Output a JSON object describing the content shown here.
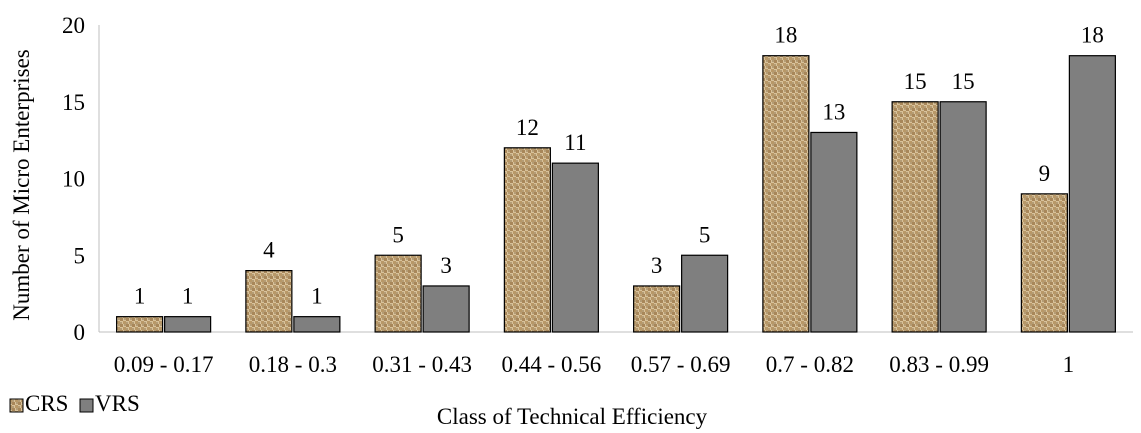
{
  "chart_data": {
    "type": "bar",
    "categories": [
      "0.09 - 0.17",
      "0.18 - 0.3",
      "0.31 - 0.43",
      "0.44 - 0.56",
      "0.57 - 0.69",
      "0.7 - 0.82",
      "0.83 - 0.99",
      "1"
    ],
    "series": [
      {
        "name": "CRS",
        "values": [
          1,
          4,
          5,
          12,
          3,
          18,
          15,
          9
        ],
        "color": "#c9ad7f",
        "pattern": "woven-texture"
      },
      {
        "name": "VRS",
        "values": [
          1,
          1,
          3,
          11,
          5,
          13,
          15,
          18
        ],
        "color": "#7f7f7f",
        "pattern": "solid"
      }
    ],
    "xlabel": "Class of Technical Efficiency",
    "ylabel": "Number of Micro Enterprises",
    "ylim": [
      0,
      20
    ],
    "yticks": [
      0,
      5,
      10,
      15,
      20
    ],
    "grid": false,
    "legend_position": "bottom-left",
    "data_labels": true
  }
}
